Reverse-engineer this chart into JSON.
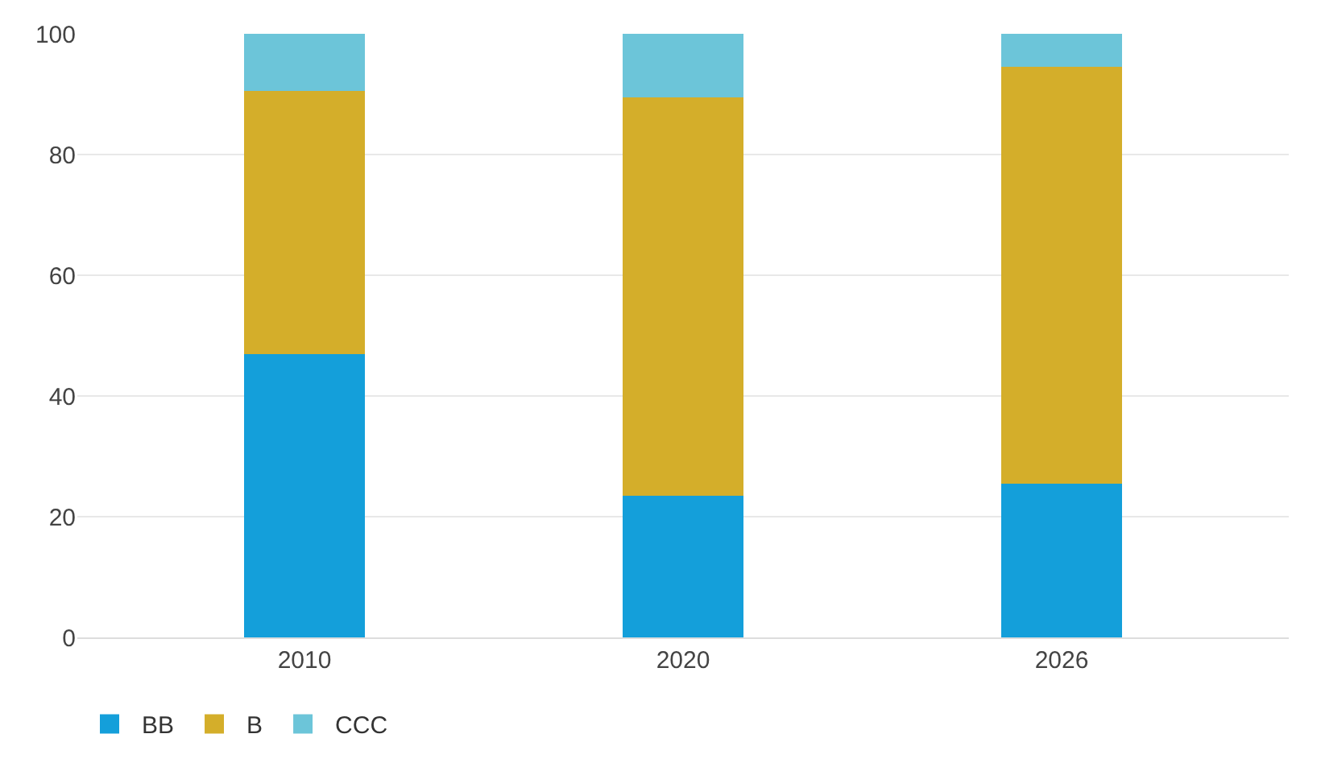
{
  "chart_data": {
    "type": "bar",
    "stacked": true,
    "categories": [
      "2010",
      "2020",
      "2026"
    ],
    "series": [
      {
        "name": "BB",
        "color": "#149fda",
        "values": [
          47,
          23.5,
          25.5
        ]
      },
      {
        "name": "B",
        "color": "#d4ae2a",
        "values": [
          43.5,
          66,
          69
        ]
      },
      {
        "name": "CCC",
        "color": "#6cc5d9",
        "values": [
          9.5,
          10.5,
          5.5
        ]
      }
    ],
    "ylim": [
      0,
      100
    ],
    "yticks": [
      0,
      20,
      40,
      60,
      80,
      100
    ],
    "grid": "y",
    "legend": "bottom left"
  }
}
